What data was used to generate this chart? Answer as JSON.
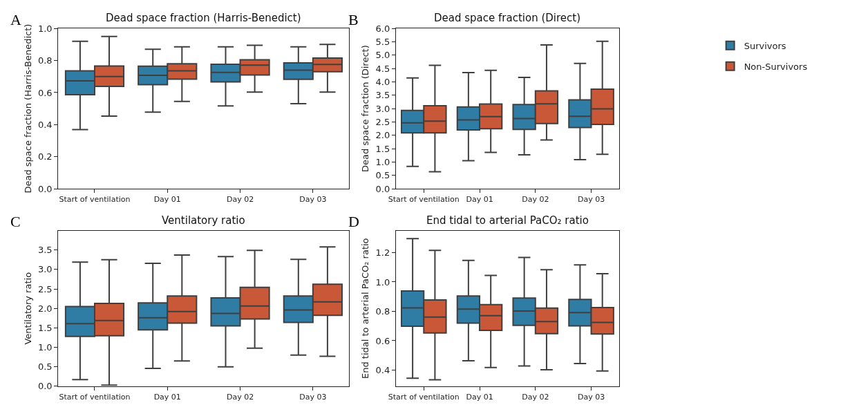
{
  "chart_data": [
    {
      "type": "box",
      "title": "Dead space fraction (Harris-Benedict)",
      "ylabel": "Dead space fraction (Harris-Benedict)",
      "annotations": [
        "A"
      ],
      "categories": [
        "Start of ventilation",
        "Day 01",
        "Day 02",
        "Day 03"
      ],
      "ylim": [
        0,
        1.0
      ],
      "yticks": [
        {
          "value": 0,
          "label": "0.0"
        },
        0.2,
        0.4,
        0.6,
        0.8,
        {
          "value": 1.0,
          "label": "1.0"
        }
      ],
      "legend": "right",
      "series": [
        {
          "name": "Survivors",
          "color": "#2f7ca4",
          "boxes": [
            {
              "low": 0.369,
              "q1": 0.587,
              "median": 0.673,
              "q3": 0.736,
              "high": 0.92
            },
            {
              "low": 0.478,
              "q1": 0.649,
              "median": 0.708,
              "q3": 0.765,
              "high": 0.87
            },
            {
              "low": 0.517,
              "q1": 0.667,
              "median": 0.726,
              "q3": 0.776,
              "high": 0.885
            },
            {
              "low": 0.531,
              "q1": 0.683,
              "median": 0.74,
              "q3": 0.785,
              "high": 0.885
            }
          ]
        },
        {
          "name": "Non-Survivors",
          "color": "#c85837",
          "boxes": [
            {
              "low": 0.453,
              "q1": 0.639,
              "median": 0.7,
              "q3": 0.766,
              "high": 0.95
            },
            {
              "low": 0.545,
              "q1": 0.684,
              "median": 0.736,
              "q3": 0.78,
              "high": 0.885
            },
            {
              "low": 0.603,
              "q1": 0.71,
              "median": 0.771,
              "q3": 0.804,
              "high": 0.895
            },
            {
              "low": 0.603,
              "q1": 0.73,
              "median": 0.775,
              "q3": 0.815,
              "high": 0.9
            }
          ]
        }
      ]
    },
    {
      "type": "box",
      "title": "Dead space fraction (Direct)",
      "ylabel": "Dead space fraction (Direct)",
      "annotations": [
        "B"
      ],
      "categories": [
        "Start of ventilation",
        "Day 01",
        "Day 02",
        "Day 03"
      ],
      "ylim": [
        0,
        6.0
      ],
      "yticks": [
        {
          "value": 0,
          "label": "0.0"
        },
        0.5,
        {
          "value": 1,
          "label": "1.0"
        },
        1.5,
        {
          "value": 2,
          "label": "2.0"
        },
        2.5,
        {
          "value": 3,
          "label": "3.0"
        },
        3.5,
        {
          "value": 4,
          "label": "4.0"
        },
        4.5,
        {
          "value": 5,
          "label": "5.0"
        },
        5.5,
        {
          "value": 6,
          "label": "6.0"
        }
      ],
      "legend": "right",
      "series": [
        {
          "name": "Survivors",
          "color": "#2f7ca4",
          "boxes": [
            {
              "low": 0.84,
              "q1": 2.09,
              "median": 2.47,
              "q3": 2.93,
              "high": 4.15
            },
            {
              "low": 1.05,
              "q1": 2.2,
              "median": 2.58,
              "q3": 3.06,
              "high": 4.35
            },
            {
              "low": 1.27,
              "q1": 2.22,
              "median": 2.63,
              "q3": 3.15,
              "high": 4.17
            },
            {
              "low": 1.09,
              "q1": 2.29,
              "median": 2.71,
              "q3": 3.33,
              "high": 4.69
            }
          ]
        },
        {
          "name": "Non-Survivors",
          "color": "#c85837",
          "boxes": [
            {
              "low": 0.64,
              "q1": 2.09,
              "median": 2.53,
              "q3": 3.11,
              "high": 4.62
            },
            {
              "low": 1.36,
              "q1": 2.25,
              "median": 2.7,
              "q3": 3.17,
              "high": 4.43
            },
            {
              "low": 1.83,
              "q1": 2.44,
              "median": 3.18,
              "q3": 3.66,
              "high": 5.38
            },
            {
              "low": 1.29,
              "q1": 2.41,
              "median": 2.99,
              "q3": 3.73,
              "high": 5.52
            }
          ]
        }
      ]
    },
    {
      "type": "box",
      "title": "Ventilatory ratio",
      "ylabel": "Ventilatory ratio",
      "annotations": [
        "C"
      ],
      "categories": [
        "Start of ventilation",
        "Day 01",
        "Day 02",
        "Day 03"
      ],
      "ylim": [
        0,
        4.0
      ],
      "yticks": [
        {
          "value": 0,
          "label": "0.0"
        },
        0.5,
        {
          "value": 1,
          "label": "1.0"
        },
        1.5,
        {
          "value": 2,
          "label": "2.0"
        },
        2.5,
        {
          "value": 3,
          "label": "3.0"
        },
        3.5
      ],
      "legend": "right",
      "series": [
        {
          "name": "Survivors",
          "color": "#2f7ca4",
          "boxes": [
            {
              "low": 0.17,
              "q1": 1.28,
              "median": 1.61,
              "q3": 2.05,
              "high": 3.19
            },
            {
              "low": 0.46,
              "q1": 1.45,
              "median": 1.76,
              "q3": 2.14,
              "high": 3.16
            },
            {
              "low": 0.5,
              "q1": 1.55,
              "median": 1.87,
              "q3": 2.27,
              "high": 3.33
            },
            {
              "low": 0.8,
              "q1": 1.64,
              "median": 1.96,
              "q3": 2.32,
              "high": 3.26
            }
          ]
        },
        {
          "name": "Non-Survivors",
          "color": "#c85837",
          "boxes": [
            {
              "low": 0.03,
              "q1": 1.3,
              "median": 1.69,
              "q3": 2.13,
              "high": 3.25
            },
            {
              "low": 0.65,
              "q1": 1.62,
              "median": 1.92,
              "q3": 2.32,
              "high": 3.37
            },
            {
              "low": 0.98,
              "q1": 1.73,
              "median": 2.06,
              "q3": 2.54,
              "high": 3.49
            },
            {
              "low": 0.77,
              "q1": 1.82,
              "median": 2.17,
              "q3": 2.62,
              "high": 3.58
            }
          ]
        }
      ]
    },
    {
      "type": "box",
      "title": "End tidal to arterial PaCO₂ ratio",
      "ylabel": "End tidal to arterial PaCO₂ ratio",
      "annotations": [
        "D"
      ],
      "categories": [
        "Start of ventilation",
        "Day 01",
        "Day 02",
        "Day 03"
      ],
      "ylim": [
        0.29,
        1.35
      ],
      "yticks": [
        0.4,
        0.6,
        0.8,
        {
          "value": 1.0,
          "label": "1.0"
        },
        1.2
      ],
      "legend": "right",
      "series": [
        {
          "name": "Survivors",
          "color": "#2f7ca4",
          "boxes": [
            {
              "low": 0.344,
              "q1": 0.699,
              "median": 0.823,
              "q3": 0.939,
              "high": 1.295
            },
            {
              "low": 0.463,
              "q1": 0.72,
              "median": 0.815,
              "q3": 0.904,
              "high": 1.147
            },
            {
              "low": 0.428,
              "q1": 0.705,
              "median": 0.802,
              "q3": 0.891,
              "high": 1.167
            },
            {
              "low": 0.444,
              "q1": 0.701,
              "median": 0.792,
              "q3": 0.881,
              "high": 1.116
            }
          ]
        },
        {
          "name": "Non-Survivors",
          "color": "#c85837",
          "boxes": [
            {
              "low": 0.334,
              "q1": 0.653,
              "median": 0.761,
              "q3": 0.877,
              "high": 1.215
            },
            {
              "low": 0.417,
              "q1": 0.67,
              "median": 0.771,
              "q3": 0.846,
              "high": 1.045
            },
            {
              "low": 0.402,
              "q1": 0.648,
              "median": 0.731,
              "q3": 0.822,
              "high": 1.083
            },
            {
              "low": 0.394,
              "q1": 0.646,
              "median": 0.725,
              "q3": 0.826,
              "high": 1.056
            }
          ]
        }
      ]
    }
  ]
}
